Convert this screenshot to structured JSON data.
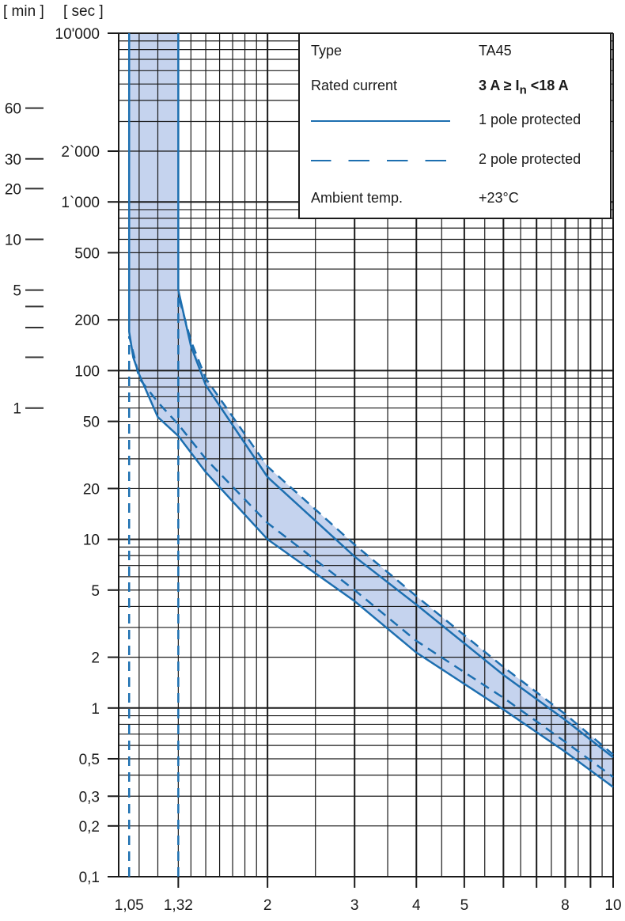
{
  "chart_data": {
    "type": "line",
    "title": "",
    "xlabel": "",
    "ylabel": "",
    "xscale": "log",
    "yscale": "log",
    "xlim": [
      1,
      10
    ],
    "ylim": [
      0.1,
      10000
    ],
    "grid": true,
    "x_tick_labels": [
      {
        "value": 1.05,
        "label": "1,05"
      },
      {
        "value": 1.32,
        "label": "1,32"
      },
      {
        "value": 2,
        "label": "2"
      },
      {
        "value": 3,
        "label": "3"
      },
      {
        "value": 4,
        "label": "4"
      },
      {
        "value": 5,
        "label": "5"
      },
      {
        "value": 8,
        "label": "8"
      },
      {
        "value": 10,
        "label": "10"
      }
    ],
    "y_unit_labels": {
      "min": "[ min ]",
      "sec": "[ sec ]"
    },
    "y_tick_labels_sec": [
      {
        "value": 10000,
        "label": "10'000"
      },
      {
        "value": 2000,
        "label": "2`000"
      },
      {
        "value": 1000,
        "label": "1`000"
      },
      {
        "value": 500,
        "label": "500"
      },
      {
        "value": 200,
        "label": "200"
      },
      {
        "value": 100,
        "label": "100"
      },
      {
        "value": 50,
        "label": "50"
      },
      {
        "value": 20,
        "label": "20"
      },
      {
        "value": 10,
        "label": "10"
      },
      {
        "value": 5,
        "label": "5"
      },
      {
        "value": 2,
        "label": "2"
      },
      {
        "value": 1,
        "label": "1"
      },
      {
        "value": 0.5,
        "label": "0,5"
      },
      {
        "value": 0.3,
        "label": "0,3"
      },
      {
        "value": 0.2,
        "label": "0,2"
      },
      {
        "value": 0.1,
        "label": "0,1"
      }
    ],
    "y_tick_labels_min": [
      {
        "value_sec": 3600,
        "label": "60"
      },
      {
        "value_sec": 1800,
        "label": "30"
      },
      {
        "value_sec": 1200,
        "label": "20"
      },
      {
        "value_sec": 600,
        "label": "10"
      },
      {
        "value_sec": 300,
        "label": "5"
      },
      {
        "value_sec": 240,
        "label": ""
      },
      {
        "value_sec": 180,
        "label": ""
      },
      {
        "value_sec": 120,
        "label": ""
      },
      {
        "value_sec": 60,
        "label": "1"
      }
    ],
    "series": [
      {
        "name": "1 pole protected (lower)",
        "style": "solid",
        "x": [
          1.05,
          1.05,
          1.07,
          1.1,
          1.2,
          1.32,
          1.5,
          2,
          3,
          4,
          6,
          8,
          10
        ],
        "y": [
          10000,
          170,
          120,
          95,
          53,
          41,
          25,
          10,
          4.3,
          2.13,
          0.98,
          0.55,
          0.34
        ]
      },
      {
        "name": "1 pole protected (upper)",
        "style": "solid",
        "x": [
          1.32,
          1.32,
          1.4,
          1.5,
          2,
          3,
          4,
          6,
          8,
          10
        ],
        "y": [
          10000,
          300,
          140,
          82,
          23.4,
          7.9,
          4.1,
          1.57,
          0.85,
          0.51
        ]
      },
      {
        "name": "2 pole protected (lower)",
        "style": "dashed",
        "x": [
          1.05,
          1.05,
          1.08,
          1.1,
          1.2,
          1.32,
          1.5,
          2,
          3,
          4,
          6,
          8,
          10
        ],
        "y": [
          0.1,
          160,
          115,
          90,
          65,
          48,
          30,
          12.5,
          5,
          2.5,
          1.15,
          0.63,
          0.39
        ]
      },
      {
        "name": "2 pole protected (upper)",
        "style": "dashed",
        "x": [
          1.32,
          1.32,
          1.4,
          1.5,
          2,
          3,
          4,
          6,
          8,
          10
        ],
        "y": [
          0.1,
          280,
          150,
          90,
          27,
          9.3,
          4.6,
          1.75,
          0.92,
          0.53
        ]
      }
    ],
    "colors": {
      "curve": "#1d6fb0",
      "band": "#c5d3ee",
      "grid": "#1a1a1a"
    },
    "legend": {
      "placement": "top-right",
      "type_label": "Type",
      "type_value": "TA45",
      "rated_label": "Rated current",
      "rated_value_prefix": "3 A ≥ I",
      "rated_value_sub": "n",
      "rated_value_suffix": " <18 A",
      "solid_label": "1 pole protected",
      "dashed_label": "2 pole protected",
      "ambient_label": "Ambient temp.",
      "ambient_value": "+23°C"
    }
  }
}
